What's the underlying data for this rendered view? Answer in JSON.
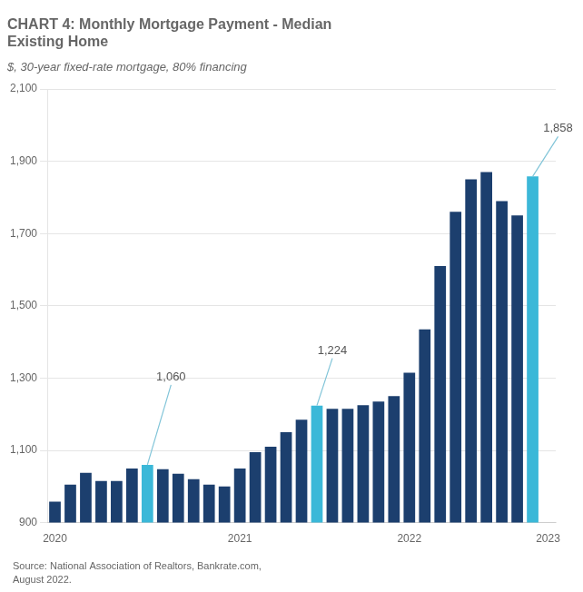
{
  "chart_data": {
    "type": "bar",
    "title": "CHART 4: Monthly Mortgage Payment - Median\nExisting Home",
    "subtitle": "$, 30-year fixed-rate mortgage, 80% financing",
    "source": "Source: National Association of Realtors, Bankrate.com,\nAugust 2022.",
    "categories": [
      "2020",
      null,
      null,
      null,
      null,
      null,
      null,
      null,
      null,
      null,
      null,
      null,
      "2021",
      null,
      null,
      null,
      null,
      null,
      null,
      null,
      null,
      null,
      null,
      "2022",
      null,
      null,
      null,
      null,
      null,
      null,
      null,
      null,
      "2023"
    ],
    "values": [
      958,
      1005,
      1038,
      1015,
      1015,
      1050,
      1060,
      1048,
      1035,
      1020,
      1005,
      1000,
      1050,
      1095,
      1110,
      1150,
      1185,
      1224,
      1215,
      1215,
      1225,
      1235,
      1250,
      1315,
      1435,
      1610,
      1760,
      1850,
      1870,
      1790,
      1750,
      1858,
      null
    ],
    "colors": [
      "#1c3f6e",
      "#1c3f6e",
      "#1c3f6e",
      "#1c3f6e",
      "#1c3f6e",
      "#1c3f6e",
      "#3bb8d8",
      "#1c3f6e",
      "#1c3f6e",
      "#1c3f6e",
      "#1c3f6e",
      "#1c3f6e",
      "#1c3f6e",
      "#1c3f6e",
      "#1c3f6e",
      "#1c3f6e",
      "#1c3f6e",
      "#3bb8d8",
      "#1c3f6e",
      "#1c3f6e",
      "#1c3f6e",
      "#1c3f6e",
      "#1c3f6e",
      "#1c3f6e",
      "#1c3f6e",
      "#1c3f6e",
      "#1c3f6e",
      "#1c3f6e",
      "#1c3f6e",
      "#1c3f6e",
      "#1c3f6e",
      "#3bb8d8",
      null
    ],
    "ylim": [
      900,
      2100
    ],
    "yticks": [
      900,
      {
        "value": 1100,
        "label": "1,100"
      },
      {
        "value": 1300,
        "label": "1,300"
      },
      {
        "value": 1500,
        "label": "1,500"
      },
      {
        "value": 1700,
        "label": "1,700"
      },
      {
        "value": 1900,
        "label": "1,900"
      },
      {
        "value": 2100,
        "label": "2,100"
      }
    ],
    "grid": true,
    "annotations": [
      {
        "text": "1,060",
        "index": 6,
        "value": 1060
      },
      {
        "text": "1,224",
        "index": 17,
        "value": 1224
      },
      {
        "text": "1,858",
        "index": 31,
        "value": 1858
      }
    ]
  }
}
